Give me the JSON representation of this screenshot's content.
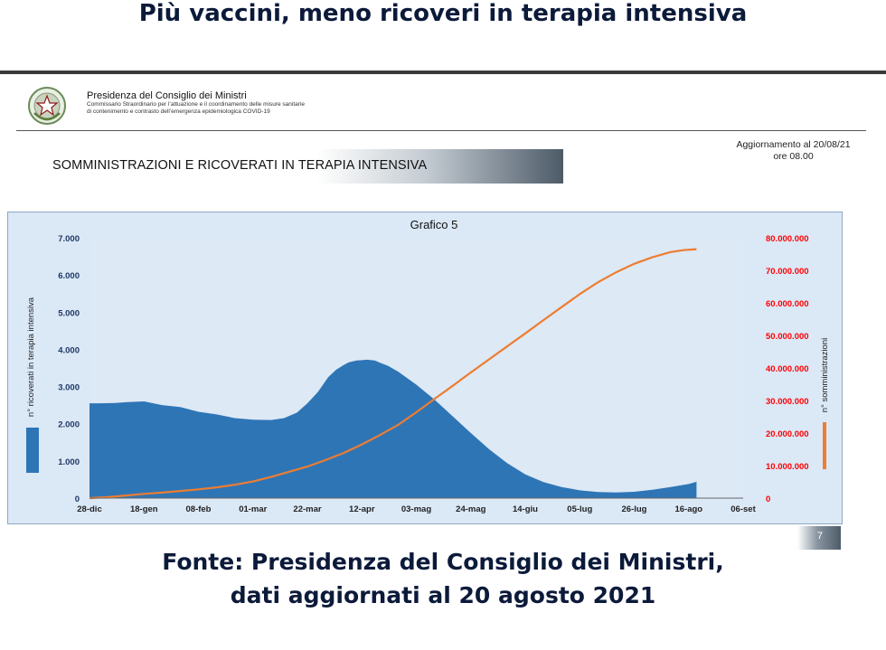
{
  "headline": "Più vaccini, meno ricoveri in terapia intensiva",
  "institution": {
    "name": "Presidenza del Consiglio dei Ministri",
    "line2": "Commissario Straordinario per l’attuazione e il coordinamento delle misure sanitarie",
    "line3": "di contenimento e contrasto dell’emergenza epidemiologica COVID-19"
  },
  "update": {
    "line1": "Aggiornamento al 20/08/21",
    "line2": "ore 08.00"
  },
  "banner": "SOMMINISTRAZIONI E RICOVERATI IN TERAPIA INTENSIVA",
  "page_number": "7",
  "source": {
    "line1": "Fonte: Presidenza del Consiglio dei Ministri,",
    "line2": "dati aggiornati al 20 agosto 2021"
  },
  "colors": {
    "area": "#2e75b6",
    "line": "#ed7d31",
    "right_axis": "#ff0000",
    "plot_bg": "#dbe8f6"
  },
  "chart_data": {
    "type": "area",
    "title": "Grafico 5",
    "ylabel": "n° ricoverati in terapia intensiva",
    "y2label": "n° somministrazioni",
    "ylim": [
      0,
      7000
    ],
    "y2lim": [
      0,
      80000000
    ],
    "yticks": [
      "0",
      "1.000",
      "2.000",
      "3.000",
      "4.000",
      "5.000",
      "6.000",
      "7.000"
    ],
    "y2ticks": [
      "0",
      "10.000.000",
      "20.000.000",
      "30.000.000",
      "40.000.000",
      "50.000.000",
      "60.000.000",
      "70.000.000",
      "80.000.000"
    ],
    "xticks": [
      "28-dic",
      "18-gen",
      "08-feb",
      "01-mar",
      "22-mar",
      "12-apr",
      "03-mag",
      "24-mag",
      "14-giu",
      "05-lug",
      "26-lug",
      "16-ago",
      "06-set"
    ],
    "legend": "left side",
    "grid": false,
    "series": [
      {
        "name": "n° ricoverati in terapia intensiva",
        "axis": "left",
        "kind": "area",
        "x": [
          0,
          4,
          10,
          14,
          21,
          28,
          35,
          42,
          49,
          56,
          63,
          70,
          75,
          80,
          84,
          88,
          92,
          95,
          98,
          100,
          103,
          105,
          107,
          110,
          112,
          115,
          119,
          126,
          133,
          140,
          147,
          154,
          161,
          168,
          175,
          182,
          189,
          196,
          203,
          210,
          217,
          224,
          231,
          234
        ],
        "y": [
          2550,
          2550,
          2560,
          2580,
          2600,
          2500,
          2450,
          2320,
          2250,
          2150,
          2110,
          2100,
          2150,
          2300,
          2550,
          2850,
          3250,
          3450,
          3580,
          3650,
          3700,
          3710,
          3720,
          3700,
          3640,
          3560,
          3400,
          3050,
          2650,
          2200,
          1750,
          1320,
          940,
          640,
          430,
          300,
          210,
          165,
          150,
          170,
          225,
          300,
          380,
          440
        ]
      },
      {
        "name": "n° somministrazioni",
        "axis": "right",
        "kind": "line",
        "x": [
          0,
          7,
          14,
          21,
          28,
          35,
          42,
          49,
          56,
          63,
          70,
          77,
          84,
          91,
          98,
          105,
          112,
          119,
          126,
          133,
          140,
          147,
          154,
          161,
          168,
          175,
          182,
          189,
          196,
          203,
          210,
          217,
          224,
          229,
          234
        ],
        "y": [
          0,
          300000,
          800000,
          1300000,
          1700000,
          2200000,
          2700000,
          3300000,
          4100000,
          5100000,
          6500000,
          8100000,
          9700000,
          11700000,
          13900000,
          16500000,
          19400000,
          22500000,
          26400000,
          30500000,
          34500000,
          38600000,
          42600000,
          46600000,
          50600000,
          54700000,
          58700000,
          62700000,
          66300000,
          69400000,
          72000000,
          74000000,
          75600000,
          76200000,
          76500000
        ]
      }
    ]
  }
}
